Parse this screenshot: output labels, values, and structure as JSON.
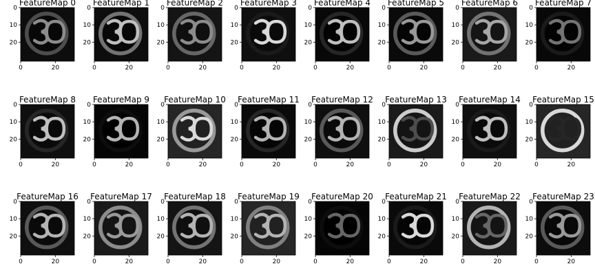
{
  "chart_data": {
    "type": "heatmap",
    "colormap": "gray",
    "grid": false,
    "digits_shown": "30",
    "xlim": [
      0,
      31
    ],
    "ylim": [
      31,
      0
    ],
    "x_ticks": [
      0,
      20
    ],
    "y_ticks": [
      0,
      10,
      20
    ],
    "panels": [
      {
        "title": "FeatureMap 0",
        "ring": 0.3,
        "digits": 0.55,
        "bg": 0.05
      },
      {
        "title": "FeatureMap 1",
        "ring": 0.45,
        "digits": 0.75,
        "bg": 0.05
      },
      {
        "title": "FeatureMap 2",
        "ring": 0.4,
        "digits": 0.55,
        "bg": 0.08
      },
      {
        "title": "FeatureMap 3",
        "ring": 0.1,
        "digits": 0.85,
        "bg": 0.06
      },
      {
        "title": "FeatureMap 4",
        "ring": 0.15,
        "digits": 0.75,
        "bg": 0.03
      },
      {
        "title": "FeatureMap 5",
        "ring": 0.35,
        "digits": 0.6,
        "bg": 0.04
      },
      {
        "title": "FeatureMap 6",
        "ring": 0.45,
        "digits": 0.65,
        "bg": 0.1
      },
      {
        "title": "FeatureMap 7",
        "ring": 0.1,
        "digits": 0.45,
        "bg": 0.03
      },
      {
        "title": "FeatureMap 8",
        "ring": 0.15,
        "digits": 0.75,
        "bg": 0.06
      },
      {
        "title": "FeatureMap 9",
        "ring": 0.05,
        "digits": 0.7,
        "bg": 0.02
      },
      {
        "title": "FeatureMap 10",
        "ring": 0.6,
        "digits": 0.85,
        "bg": 0.15
      },
      {
        "title": "FeatureMap 11",
        "ring": 0.15,
        "digits": 0.7,
        "bg": 0.04
      },
      {
        "title": "FeatureMap 12",
        "ring": 0.35,
        "digits": 0.7,
        "bg": 0.06
      },
      {
        "title": "FeatureMap 13",
        "ring": 0.8,
        "digits": 0.3,
        "bg": 0.1
      },
      {
        "title": "FeatureMap 14",
        "ring": 0.1,
        "digits": 0.75,
        "bg": 0.06
      },
      {
        "title": "FeatureMap 15",
        "ring": 0.85,
        "digits": 0.15,
        "bg": 0.15
      },
      {
        "title": "FeatureMap 16",
        "ring": 0.35,
        "digits": 0.7,
        "bg": 0.06
      },
      {
        "title": "FeatureMap 17",
        "ring": 0.55,
        "digits": 0.6,
        "bg": 0.1
      },
      {
        "title": "FeatureMap 18",
        "ring": 0.45,
        "digits": 0.7,
        "bg": 0.08
      },
      {
        "title": "FeatureMap 19",
        "ring": 0.5,
        "digits": 0.7,
        "bg": 0.15
      },
      {
        "title": "FeatureMap 20",
        "ring": 0.05,
        "digits": 0.4,
        "bg": 0.02
      },
      {
        "title": "FeatureMap 21",
        "ring": 0.1,
        "digits": 0.85,
        "bg": 0.04
      },
      {
        "title": "FeatureMap 22",
        "ring": 0.7,
        "digits": 0.4,
        "bg": 0.1
      },
      {
        "title": "FeatureMap 23",
        "ring": 0.35,
        "digits": 0.6,
        "bg": 0.05
      }
    ]
  }
}
